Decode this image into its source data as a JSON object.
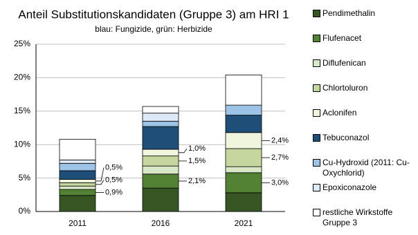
{
  "chart_data": {
    "type": "stacked-bar",
    "title": "Anteil Substitutionskandidaten (Gruppe 3) am HRI 1",
    "subtitle": "blau: Fungizide, grün: Herbizide",
    "categories": [
      "2011",
      "2016",
      "2021"
    ],
    "series": [
      {
        "name": "Pendimethalin",
        "color": "#375623",
        "values": [
          2.4,
          3.5,
          2.8
        ]
      },
      {
        "name": "Flufenacet",
        "color": "#548235",
        "values": [
          0.9,
          2.1,
          3.0
        ],
        "value_labels": [
          "0,9%",
          "2,1%",
          "3,0%"
        ]
      },
      {
        "name": "Diflufenican",
        "color": "#d8e8c6",
        "values": [
          0.5,
          1.2,
          0.9
        ]
      },
      {
        "name": "Chlortoluron",
        "color": "#c5d79e",
        "values": [
          0.5,
          1.5,
          2.7
        ],
        "value_labels": [
          "0,5%",
          "1,5%",
          "2,7%"
        ]
      },
      {
        "name": "Aclonifen",
        "color": "#f0f6de",
        "values": [
          0.5,
          1.0,
          2.4
        ],
        "value_labels": [
          "0,5%",
          "1,0%",
          "2,4%"
        ]
      },
      {
        "name": "Tebuconazol",
        "color": "#1f4e79",
        "values": [
          1.3,
          3.4,
          2.6
        ]
      },
      {
        "name": "Cu-Hydroxid (2011: Cu-Oxychlorid)",
        "color": "#9dc3e6",
        "values": [
          1.1,
          0.8,
          1.5
        ]
      },
      {
        "name": "Epoxiconazole",
        "color": "#dde9f6",
        "values": [
          0.5,
          1.2,
          0
        ]
      },
      {
        "name": "restliche Wirkstoffe Gruppe 3",
        "color": "#ffffff",
        "values": [
          3.1,
          1.0,
          4.5
        ]
      }
    ],
    "ylim": [
      0,
      25
    ],
    "yticks": [
      {
        "value": 0,
        "label": "0%"
      },
      {
        "value": 5,
        "label": "5%"
      },
      {
        "value": 10,
        "label": "10%"
      },
      {
        "value": 15,
        "label": "15%"
      },
      {
        "value": 20,
        "label": "20%"
      },
      {
        "value": 25,
        "label": "25%"
      }
    ],
    "grid": true
  }
}
